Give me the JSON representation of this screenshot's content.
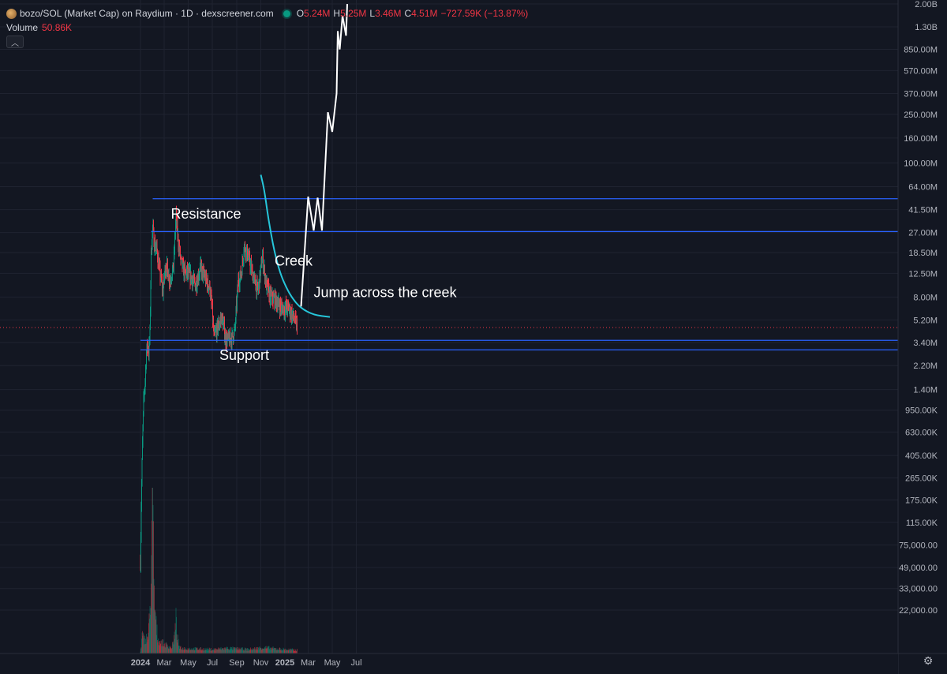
{
  "header": {
    "title": "bozo/SOL (Market Cap) on Raydium · 1D · dexscreener.com",
    "o_key": "O",
    "o_val": "5.24M",
    "h_key": "H",
    "h_val": "5.25M",
    "l_key": "L",
    "l_val": "3.46M",
    "c_key": "C",
    "c_val": "4.51M",
    "change": "−727.59K (−13.87%)"
  },
  "volume": {
    "label": "Volume",
    "value": "50.86K"
  },
  "colors": {
    "background": "#131722",
    "up": "#089981",
    "down": "#f23645",
    "level_line": "#2962ff",
    "creek_curve": "#26c6da",
    "projection": "#ffffff"
  },
  "chart_data": {
    "type": "candlestick",
    "scale": "log",
    "interval": "1D",
    "y_tick_labels": [
      "2.00B",
      "1.30B",
      "850.00M",
      "570.00M",
      "370.00M",
      "250.00M",
      "160.00M",
      "100.00M",
      "64.00M",
      "41.50M",
      "27.00M",
      "18.50M",
      "12.50M",
      "8.00M",
      "5.20M",
      "3.40M",
      "2.20M",
      "1.40M",
      "950.00K",
      "630.00K",
      "405.00K",
      "265.00K",
      "175.00K",
      "115.00K",
      "75,000.00",
      "49,000.00",
      "33,000.00",
      "22,000.00"
    ],
    "y_tick_values": [
      2000000000,
      1300000000,
      850000000,
      570000000,
      370000000,
      250000000,
      160000000,
      100000000,
      64000000,
      41500000,
      27000000,
      18500000,
      12500000,
      8000000,
      5200000,
      3400000,
      2200000,
      1400000,
      950000,
      630000,
      405000,
      265000,
      175000,
      115000,
      75000,
      49000,
      33000,
      22000
    ],
    "x_tick_labels": [
      {
        "label": "2024",
        "date": "2024-01-01",
        "bold": true
      },
      {
        "label": "Mar",
        "date": "2024-03-01"
      },
      {
        "label": "May",
        "date": "2024-05-01"
      },
      {
        "label": "Jul",
        "date": "2024-07-01"
      },
      {
        "label": "Sep",
        "date": "2024-09-01"
      },
      {
        "label": "Nov",
        "date": "2024-11-01"
      },
      {
        "label": "2025",
        "date": "2025-01-01",
        "bold": true
      },
      {
        "label": "Mar",
        "date": "2025-03-01"
      },
      {
        "label": "May",
        "date": "2025-05-01"
      },
      {
        "label": "Jul",
        "date": "2025-07-01"
      }
    ],
    "price_waypoints": [
      [
        "2024-01-01",
        55000
      ],
      [
        "2024-01-03",
        160000
      ],
      [
        "2024-01-06",
        500000
      ],
      [
        "2024-01-09",
        1100000
      ],
      [
        "2024-01-13",
        1700000
      ],
      [
        "2024-01-16",
        2800000
      ],
      [
        "2024-01-19",
        3300000
      ],
      [
        "2024-01-22",
        2800000
      ],
      [
        "2024-01-25",
        4000000
      ],
      [
        "2024-01-28",
        18000000
      ],
      [
        "2024-02-01",
        30000000
      ],
      [
        "2024-02-05",
        22000000
      ],
      [
        "2024-02-12",
        19000000
      ],
      [
        "2024-02-20",
        12000000
      ],
      [
        "2024-02-27",
        9000000
      ],
      [
        "2024-03-05",
        15000000
      ],
      [
        "2024-03-15",
        11000000
      ],
      [
        "2024-03-25",
        14000000
      ],
      [
        "2024-03-31",
        38000000
      ],
      [
        "2024-04-05",
        24000000
      ],
      [
        "2024-04-12",
        16000000
      ],
      [
        "2024-04-20",
        13000000
      ],
      [
        "2024-05-05",
        12000000
      ],
      [
        "2024-05-20",
        10000000
      ],
      [
        "2024-06-01",
        14000000
      ],
      [
        "2024-06-15",
        11000000
      ],
      [
        "2024-06-25",
        9500000
      ],
      [
        "2024-07-01",
        6000000
      ],
      [
        "2024-07-05",
        3800000
      ],
      [
        "2024-07-15",
        4500000
      ],
      [
        "2024-07-25",
        5500000
      ],
      [
        "2024-08-05",
        3500000
      ],
      [
        "2024-08-20",
        3700000
      ],
      [
        "2024-08-27",
        4200000
      ],
      [
        "2024-09-05",
        11000000
      ],
      [
        "2024-09-12",
        12000000
      ],
      [
        "2024-09-20",
        21000000
      ],
      [
        "2024-10-01",
        17000000
      ],
      [
        "2024-10-15",
        11000000
      ],
      [
        "2024-10-25",
        9000000
      ],
      [
        "2024-11-05",
        17000000
      ],
      [
        "2024-11-15",
        10000000
      ],
      [
        "2024-11-25",
        8000000
      ],
      [
        "2024-12-10",
        7500000
      ],
      [
        "2024-12-25",
        6500000
      ],
      [
        "2025-01-10",
        6500000
      ],
      [
        "2025-01-25",
        5240000
      ],
      [
        "2025-02-01",
        4510000
      ]
    ],
    "volume_waypoints": [
      [
        "2024-01-01",
        4000
      ],
      [
        "2024-01-05",
        30000
      ],
      [
        "2024-01-10",
        20000
      ],
      [
        "2024-01-20",
        25000
      ],
      [
        "2024-01-28",
        120000
      ],
      [
        "2024-02-01",
        260000
      ],
      [
        "2024-02-05",
        90000
      ],
      [
        "2024-02-15",
        20000
      ],
      [
        "2024-03-20",
        9000
      ],
      [
        "2024-03-31",
        50000
      ],
      [
        "2024-04-10",
        8000
      ],
      [
        "2024-07-01",
        6000
      ],
      [
        "2024-08-05",
        8000
      ],
      [
        "2024-10-01",
        6000
      ],
      [
        "2024-11-05",
        9000
      ],
      [
        "2025-02-01",
        5000
      ]
    ],
    "horizontal_levels": [
      {
        "label": "51.060M",
        "value": 51060000,
        "start": "2024-02-01"
      },
      {
        "label": "27.48M",
        "value": 27480000,
        "start": "2024-01-28"
      },
      {
        "label": "3.54M",
        "value": 3540000,
        "start": "2024-01-01"
      },
      {
        "label": "2.96M",
        "value": 2960000,
        "start": "2024-01-01"
      }
    ],
    "current_price": {
      "label": "4.51M",
      "value": 4510000
    },
    "creek_curve": [
      [
        "2024-11-01",
        80000000
      ],
      [
        "2024-11-10",
        60000000
      ],
      [
        "2024-11-20",
        35000000
      ],
      [
        "2024-12-05",
        19000000
      ],
      [
        "2024-12-20",
        12500000
      ],
      [
        "2025-01-05",
        9500000
      ],
      [
        "2025-01-20",
        7800000
      ],
      [
        "2025-02-10",
        6500000
      ],
      [
        "2025-03-15",
        5700000
      ],
      [
        "2025-04-25",
        5500000
      ]
    ],
    "projection_path": [
      [
        "2025-02-11",
        6700000
      ],
      [
        "2025-03-01",
        53000000
      ],
      [
        "2025-03-15",
        28000000
      ],
      [
        "2025-03-25",
        52000000
      ],
      [
        "2025-04-05",
        28000000
      ],
      [
        "2025-04-20",
        260000000
      ],
      [
        "2025-05-01",
        180000000
      ],
      [
        "2025-05-12",
        370000000
      ],
      [
        "2025-05-15",
        1200000000
      ],
      [
        "2025-05-20",
        850000000
      ],
      [
        "2025-05-27",
        1600000000
      ],
      [
        "2025-06-05",
        1100000000
      ],
      [
        "2025-06-08",
        2000000000
      ]
    ],
    "annotations": [
      {
        "name": "annotation-resistance",
        "text": "Resistance",
        "date": "2024-06-15",
        "value": 35000000
      },
      {
        "name": "annotation-creek",
        "text": "Creek",
        "date": "2025-01-23",
        "value": 14500000
      },
      {
        "name": "annotation-support",
        "text": "Support",
        "date": "2024-09-20",
        "value": 2450000
      },
      {
        "name": "annotation-jump",
        "text": "Jump across the creek",
        "date": "2025-03-15",
        "value": 8000000
      }
    ]
  }
}
